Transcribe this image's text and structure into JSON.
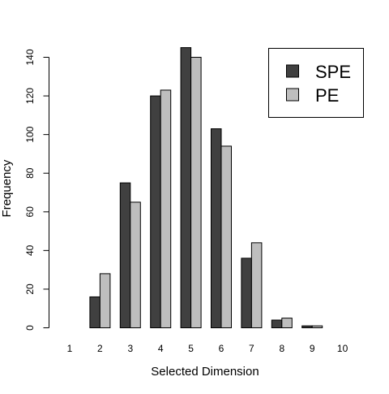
{
  "chart_data": {
    "type": "bar",
    "xlabel": "Selected Dimension",
    "ylabel": "Frequency",
    "categories": [
      "1",
      "2",
      "3",
      "4",
      "5",
      "6",
      "7",
      "8",
      "9",
      "10"
    ],
    "ylim": [
      0,
      140
    ],
    "yticks": [
      0,
      20,
      40,
      60,
      80,
      100,
      120,
      140
    ],
    "grid": false,
    "legend_position": "top-right",
    "series": [
      {
        "name": "SPE",
        "color": "#404040",
        "values": [
          0,
          16,
          75,
          120,
          145,
          103,
          36,
          4,
          1,
          0
        ]
      },
      {
        "name": "PE",
        "color": "#bebebe",
        "values": [
          0,
          28,
          65,
          123,
          140,
          94,
          44,
          5,
          1,
          0
        ]
      }
    ]
  }
}
